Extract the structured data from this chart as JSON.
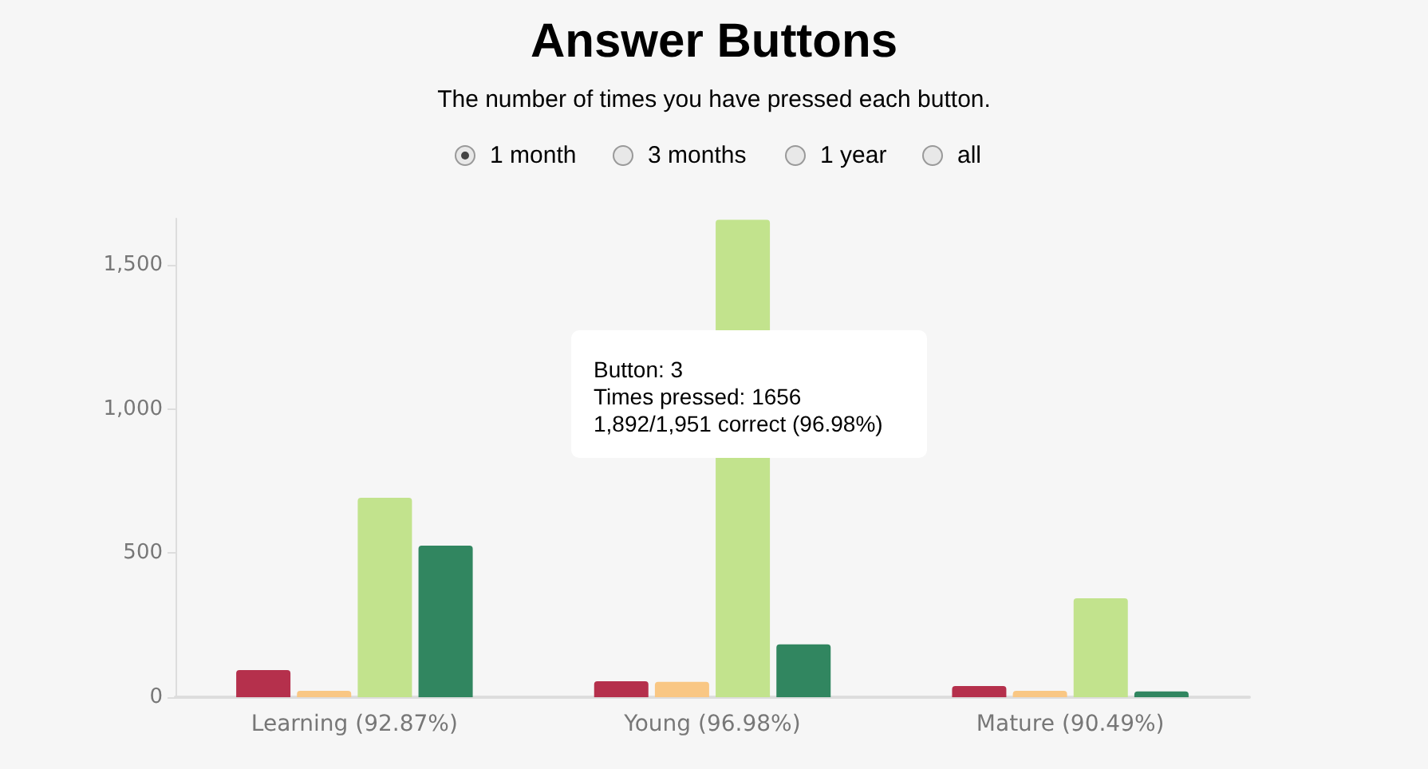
{
  "chart_data": {
    "type": "bar",
    "title": "Answer Buttons",
    "subtitle": "The number of times you have pressed each button.",
    "categories": [
      "Learning (92.87%)",
      "Young (96.98%)",
      "Mature (90.49%)"
    ],
    "series": [
      {
        "color": "#b5304c",
        "values": [
          94,
          55,
          39
        ]
      },
      {
        "color": "#f9c784",
        "values": [
          22,
          53,
          22
        ]
      },
      {
        "color": "#c2e38d",
        "values": [
          692,
          1656,
          343
        ]
      },
      {
        "color": "#318660",
        "values": [
          526,
          183,
          20
        ]
      }
    ],
    "ylim": [
      0,
      1660
    ],
    "yticks": [
      0,
      500,
      {
        "value": 1000,
        "label": "1,000"
      },
      {
        "value": 1500,
        "label": "1,500"
      }
    ],
    "grid": false,
    "annotations": [
      "1 month",
      "3 months",
      "1 year",
      "all",
      "Button: 3\nTimes pressed: 1656\n1,892/1,951 correct (96.98%)"
    ]
  }
}
